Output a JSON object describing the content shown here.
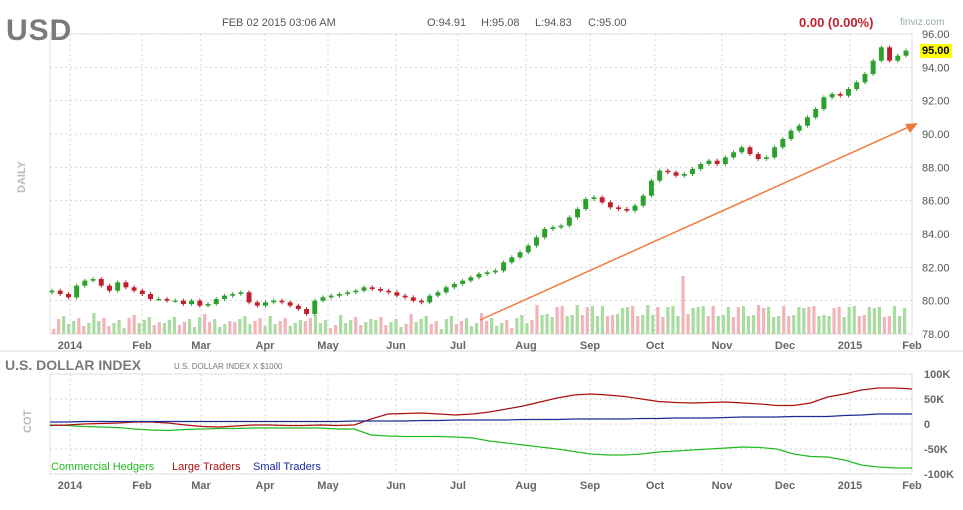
{
  "header": {
    "ticker": "USD",
    "date": "FEB 02 2015 03:06 AM",
    "open": "O:94.91",
    "high": "H:95.08",
    "low": "L:94.83",
    "close": "C:95.00",
    "change": "0.00 (0.00%)",
    "brand": "finviz.com",
    "period": "DAILY"
  },
  "colors": {
    "up": "#2ca02c",
    "down": "#c0202b",
    "trend": "#f07b3f",
    "hedgers": "#22bb22",
    "large": "#aa1111",
    "small": "#1a2a99"
  },
  "chart_data": [
    {
      "type": "line",
      "title": "USD",
      "x_ticks": [
        "2014",
        "Feb",
        "Mar",
        "Apr",
        "May",
        "Jun",
        "Jul",
        "Aug",
        "Sep",
        "Oct",
        "Nov",
        "Dec",
        "2015",
        "Feb"
      ],
      "y_ticks": [
        "96.00",
        "94.00",
        "92.00",
        "90.00",
        "88.00",
        "86.00",
        "84.00",
        "82.00",
        "80.00",
        "78.00"
      ],
      "ylim": [
        78,
        96
      ],
      "last_price": "95.00",
      "series": [
        {
          "values": [
            80.6,
            80.4,
            80.2,
            80.9,
            81.2,
            81.3,
            80.9,
            80.6,
            81.1,
            80.8,
            80.6,
            80.4,
            80.1,
            80.1,
            80.0,
            80.0,
            79.8,
            80.0,
            79.7,
            79.8,
            80.1,
            80.3,
            80.4,
            80.5,
            79.9,
            79.7,
            79.9,
            80.0,
            79.9,
            79.7,
            79.5,
            79.2,
            80.0,
            80.2,
            80.3,
            80.4,
            80.5,
            80.6,
            80.8,
            80.7,
            80.6,
            80.5,
            80.3,
            80.2,
            80.0,
            79.9,
            80.3,
            80.5,
            80.8,
            81.0,
            81.2,
            81.4,
            81.6,
            81.7,
            81.8,
            82.3,
            82.6,
            82.9,
            83.3,
            83.8,
            84.3,
            84.4,
            84.5,
            85.0,
            85.5,
            86.1,
            86.2,
            85.9,
            85.6,
            85.5,
            85.4,
            85.7,
            86.3,
            87.2,
            87.8,
            87.7,
            87.5,
            87.6,
            87.9,
            88.2,
            88.4,
            88.2,
            88.6,
            88.9,
            89.2,
            88.8,
            88.5,
            88.6,
            89.2,
            89.7,
            90.2,
            90.5,
            91.0,
            91.5,
            92.2,
            92.4,
            92.3,
            92.7,
            93.1,
            93.6,
            94.4,
            95.2,
            94.4,
            94.7,
            95.0
          ]
        }
      ]
    },
    {
      "type": "line",
      "title": "U.S. DOLLAR INDEX",
      "subtitle": "U.S. DOLLAR INDEX X $1000",
      "x_ticks": [
        "2014",
        "Feb",
        "Mar",
        "Apr",
        "May",
        "Jun",
        "Jul",
        "Aug",
        "Sep",
        "Oct",
        "Nov",
        "Dec",
        "2015",
        "Feb"
      ],
      "y_ticks": [
        "100K",
        "50K",
        "0",
        "-50K",
        "-100K"
      ],
      "ylim": [
        -100000,
        100000
      ],
      "series": [
        {
          "name": "Commercial Hedgers",
          "values": [
            -2000,
            -3000,
            -5000,
            -6000,
            -7000,
            -10000,
            -12000,
            -13000,
            -11000,
            -10000,
            -9000,
            -9000,
            -8000,
            -8000,
            -8000,
            -8000,
            -8000,
            -10000,
            -10000,
            -22000,
            -24000,
            -25000,
            -25000,
            -25000,
            -26000,
            -28000,
            -34000,
            -38000,
            -42000,
            -46000,
            -50000,
            -55000,
            -60000,
            -62000,
            -62000,
            -60000,
            -56000,
            -54000,
            -52000,
            -50000,
            -48000,
            -46000,
            -47000,
            -50000,
            -60000,
            -65000,
            -66000,
            -72000,
            -82000,
            -86000,
            -88000,
            -88000
          ]
        },
        {
          "name": "Large Traders",
          "values": [
            -3000,
            -2000,
            0,
            1000,
            2000,
            4000,
            4000,
            2000,
            -2000,
            -5000,
            -6000,
            -4000,
            -2000,
            -2000,
            -3000,
            -3000,
            -2000,
            -3000,
            -2000,
            10000,
            20000,
            21000,
            22000,
            20000,
            18000,
            20000,
            24000,
            30000,
            36000,
            44000,
            52000,
            58000,
            60000,
            58000,
            55000,
            50000,
            45000,
            43000,
            42000,
            43000,
            44000,
            42000,
            40000,
            37000,
            37000,
            42000,
            54000,
            60000,
            68000,
            72000,
            72000,
            70000
          ]
        },
        {
          "name": "Small Traders",
          "values": [
            4000,
            4000,
            5000,
            5000,
            5000,
            5000,
            5000,
            5000,
            5000,
            5000,
            5000,
            5000,
            5000,
            5000,
            5000,
            5000,
            5000,
            5000,
            6000,
            6000,
            6000,
            6000,
            7000,
            7000,
            8000,
            8000,
            8000,
            8000,
            9000,
            9000,
            9000,
            10000,
            10000,
            10000,
            10000,
            11000,
            11000,
            12000,
            12000,
            12000,
            13000,
            14000,
            14000,
            14000,
            15000,
            15000,
            15000,
            17000,
            18000,
            20000,
            20000,
            20000
          ]
        }
      ]
    }
  ]
}
